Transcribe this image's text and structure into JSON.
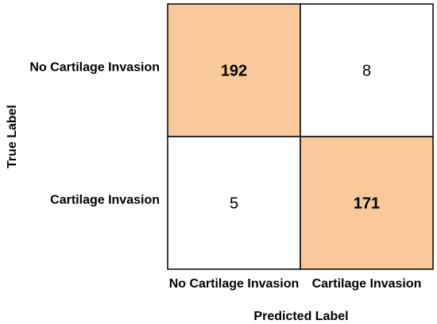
{
  "chart_data": {
    "type": "heatmap",
    "title": "",
    "xlabel": "Predicted Label",
    "ylabel": "True Label",
    "x_categories": [
      "No Cartilage Invasion",
      "Cartilage Invasion"
    ],
    "y_categories": [
      "No Cartilage Invasion",
      "Cartilage Invasion"
    ],
    "values": [
      [
        192,
        8
      ],
      [
        5,
        171
      ]
    ],
    "grid": true,
    "colors": {
      "highlight": "#f9c99b",
      "plain": "#ffffff",
      "border": "#000000"
    }
  }
}
